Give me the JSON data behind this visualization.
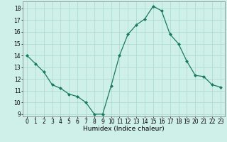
{
  "x": [
    0,
    1,
    2,
    3,
    4,
    5,
    6,
    7,
    8,
    9,
    10,
    11,
    12,
    13,
    14,
    15,
    16,
    17,
    18,
    19,
    20,
    21,
    22,
    23
  ],
  "y": [
    14.0,
    13.3,
    12.6,
    11.5,
    11.2,
    10.7,
    10.5,
    10.0,
    9.0,
    9.0,
    11.4,
    14.0,
    15.8,
    16.6,
    17.1,
    18.2,
    17.8,
    15.8,
    15.0,
    13.5,
    12.3,
    12.2,
    11.5,
    11.3
  ],
  "line_color": "#1a7a5e",
  "marker": "D",
  "marker_size": 2.0,
  "bg_color": "#cef0e8",
  "grid_color": "#aad8cc",
  "xlabel": "Humidex (Indice chaleur)",
  "xlim": [
    -0.5,
    23.5
  ],
  "ylim": [
    8.8,
    18.6
  ],
  "yticks": [
    9,
    10,
    11,
    12,
    13,
    14,
    15,
    16,
    17,
    18
  ],
  "xticks": [
    0,
    1,
    2,
    3,
    4,
    5,
    6,
    7,
    8,
    9,
    10,
    11,
    12,
    13,
    14,
    15,
    16,
    17,
    18,
    19,
    20,
    21,
    22,
    23
  ],
  "label_fontsize": 6.5,
  "tick_fontsize": 5.5,
  "linewidth": 0.9
}
